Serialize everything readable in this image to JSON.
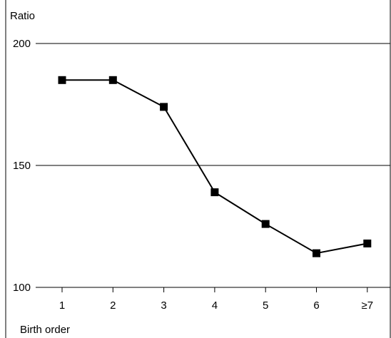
{
  "chart_data": {
    "type": "line",
    "title": "",
    "xlabel": "Birth order",
    "ylabel": "Ratio",
    "categories": [
      "1",
      "2",
      "3",
      "4",
      "5",
      "6",
      "≥7"
    ],
    "series": [
      {
        "values": [
          185,
          185,
          174,
          139,
          126,
          114,
          118
        ]
      }
    ],
    "ylim": [
      100,
      200
    ],
    "yticks": [
      100,
      150,
      200
    ],
    "y_tick_labels": [
      "100",
      "150",
      "200"
    ],
    "grid": "horizontal lines at y ticks",
    "legend": "none",
    "marker": "filled square",
    "line_color": "#000000"
  }
}
